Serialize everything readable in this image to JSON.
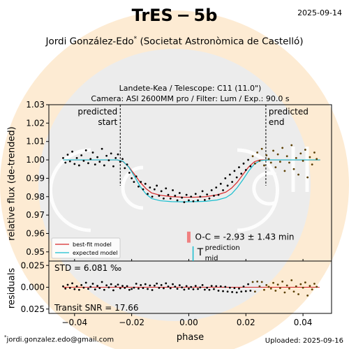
{
  "header": {
    "title": "TrES − 5b",
    "date": "2025-09-14",
    "author": "Jordi González-Edo",
    "author_mark": "*",
    "affiliation": "(Societat Astronòmica de Castelló)",
    "subtitle_line1": "Landete-Kea / Telescope: C11 (11.0\")",
    "subtitle_line2": "Camera: ASI 2600MM pro / Filter: Lum / Exp.: 90.0 s"
  },
  "footer": {
    "email_mark": "*",
    "email": "jordi.gonzalez.edo@gmail.com",
    "uploaded": "Uploaded: 2025-09-16"
  },
  "colors": {
    "background_ring": "#fdebd3",
    "background_disk": "#ececec",
    "points": "#000000",
    "bestfit": "#d62728",
    "expected": "#17becf",
    "oc_bar": "#f08080",
    "egress_points": "#5a3e00"
  },
  "chart_data": [
    {
      "type": "scatter",
      "panel": "light-curve",
      "xlabel": "phase",
      "ylabel": "relative flux (de-trended)",
      "xlim": [
        -0.049,
        0.05
      ],
      "ylim": [
        0.945,
        1.03
      ],
      "yticks": [
        "0.95",
        "0.96",
        "0.97",
        "0.98",
        "0.99",
        "1.00",
        "1.01",
        "1.02",
        "1.03"
      ],
      "ytick_values": [
        0.95,
        0.96,
        0.97,
        0.98,
        0.99,
        1.0,
        1.01,
        1.02,
        1.03
      ],
      "grid": false,
      "annotations": {
        "predicted_start": {
          "x": -0.024,
          "text_line1": "predicted",
          "text_line2": "start"
        },
        "predicted_end": {
          "x": 0.027,
          "text_line1": "predicted",
          "text_line2": "end"
        },
        "oc_text": "O-C = -2.93 ± 1.43 min",
        "tmid_T": "T",
        "tmid_sup": "prediction",
        "tmid_sub": "mid",
        "oc_bar": {
          "x": 0.0,
          "y_range": [
            0.955,
            0.961
          ]
        }
      },
      "model": {
        "depth": 0.0205,
        "t1": -0.0235,
        "t4": 0.0245,
        "ingress": 0.0085,
        "oc_shift": -0.00085
      },
      "series": [
        {
          "name": "best-fit model",
          "color": "#d62728",
          "x": [
            -0.044,
            -0.04,
            -0.036,
            -0.032,
            -0.028,
            -0.025,
            -0.023,
            -0.021,
            -0.019,
            -0.017,
            -0.015,
            -0.013,
            -0.01,
            -0.006,
            -0.002,
            0.002,
            0.006,
            0.01,
            0.013,
            0.015,
            0.017,
            0.019,
            0.021,
            0.023,
            0.025,
            0.028,
            0.032,
            0.036,
            0.04,
            0.044,
            0.046
          ],
          "y": [
            1.0,
            1.0,
            1.0,
            1.0,
            1.0,
            1.0,
            0.999,
            0.9962,
            0.9921,
            0.9878,
            0.9844,
            0.982,
            0.9808,
            0.98,
            0.9797,
            0.9797,
            0.98,
            0.981,
            0.9825,
            0.9847,
            0.9879,
            0.9921,
            0.9962,
            0.999,
            1.0,
            1.0,
            1.0,
            1.0,
            1.0,
            1.0,
            1.0
          ]
        },
        {
          "name": "expected model",
          "color": "#17becf",
          "x": [
            -0.044,
            -0.04,
            -0.036,
            -0.032,
            -0.028,
            -0.025,
            -0.023,
            -0.021,
            -0.019,
            -0.017,
            -0.015,
            -0.013,
            -0.01,
            -0.006,
            -0.002,
            0.002,
            0.006,
            0.01,
            0.013,
            0.015,
            0.017,
            0.019,
            0.021,
            0.023,
            0.025,
            0.028,
            0.032,
            0.036,
            0.04,
            0.044,
            0.046
          ],
          "y": [
            1.0,
            1.0,
            1.0,
            1.0,
            1.0,
            1.0,
            0.9992,
            0.996,
            0.991,
            0.9855,
            0.9815,
            0.979,
            0.9778,
            0.9773,
            0.9772,
            0.9773,
            0.9775,
            0.9782,
            0.9795,
            0.9815,
            0.985,
            0.9893,
            0.994,
            0.9978,
            0.9996,
            1.0,
            1.0,
            1.0,
            1.0,
            1.0,
            1.0
          ]
        }
      ],
      "points": {
        "x": [
          -0.044,
          -0.0432,
          -0.0424,
          -0.0416,
          -0.0408,
          -0.04,
          -0.0392,
          -0.0384,
          -0.0376,
          -0.0368,
          -0.036,
          -0.0352,
          -0.0344,
          -0.0336,
          -0.0328,
          -0.032,
          -0.0312,
          -0.0304,
          -0.0296,
          -0.0288,
          -0.028,
          -0.0272,
          -0.0264,
          -0.0256,
          -0.0248,
          -0.024,
          -0.0232,
          -0.0224,
          -0.0216,
          -0.0208,
          -0.02,
          -0.0192,
          -0.0184,
          -0.0176,
          -0.0168,
          -0.016,
          -0.0152,
          -0.0144,
          -0.0136,
          -0.0128,
          -0.012,
          -0.0112,
          -0.0104,
          -0.0096,
          -0.0088,
          -0.008,
          -0.0072,
          -0.0064,
          -0.0056,
          -0.0048,
          -0.004,
          -0.0032,
          -0.0024,
          -0.0016,
          -0.0008,
          0.0,
          0.0008,
          0.0016,
          0.0024,
          0.0032,
          0.004,
          0.0048,
          0.0056,
          0.0064,
          0.0072,
          0.008,
          0.0088,
          0.0096,
          0.0104,
          0.0112,
          0.012,
          0.0128,
          0.0136,
          0.0144,
          0.0152,
          0.016,
          0.0168,
          0.0176,
          0.0184,
          0.0192,
          0.02,
          0.0208,
          0.0216,
          0.0224,
          0.0232,
          0.024,
          0.0248,
          0.0256,
          0.0264,
          0.0272,
          0.028,
          0.0288,
          0.0296,
          0.0304,
          0.0312,
          0.032,
          0.0328,
          0.0336,
          0.0344,
          0.0352,
          0.036,
          0.0368,
          0.0376,
          0.0384,
          0.0392,
          0.04,
          0.0408,
          0.0416,
          0.0424,
          0.0432,
          0.044,
          0.0448
        ],
        "y": [
          1.001,
          0.9985,
          1.0028,
          0.9992,
          1.0045,
          0.9978,
          1.001,
          0.997,
          1.0025,
          0.9995,
          1.0052,
          0.9982,
          1.0005,
          1.004,
          0.9975,
          1.0015,
          0.999,
          1.006,
          0.997,
          1.0022,
          0.9998,
          1.0035,
          0.9965,
          1.001,
          1.003,
          0.999,
          1.0005,
          0.9955,
          0.9975,
          0.993,
          0.99,
          0.988,
          0.991,
          0.9855,
          0.988,
          0.984,
          0.987,
          0.9815,
          0.985,
          0.98,
          0.984,
          0.986,
          0.9805,
          0.983,
          0.979,
          0.9845,
          0.981,
          0.979,
          0.9835,
          0.9805,
          0.978,
          0.982,
          0.9795,
          0.977,
          0.981,
          0.978,
          0.98,
          0.9775,
          0.9815,
          0.978,
          0.98,
          0.983,
          0.9782,
          0.9812,
          0.979,
          0.9835,
          0.9805,
          0.985,
          0.981,
          0.987,
          0.9835,
          0.99,
          0.986,
          0.992,
          0.988,
          0.994,
          0.9905,
          0.996,
          0.9925,
          0.998,
          0.9945,
          1.0,
          0.9965,
          1.002,
          0.998,
          1.004,
          0.9995,
          1.006,
          0.997,
          1.0025,
          1.0005,
          0.9985,
          1.005,
          0.996,
          1.003,
          0.999,
          1.0065,
          0.994,
          1.002,
          0.9985,
          1.008,
          0.995,
          1.001,
          0.992,
          1.0035,
          0.9995,
          1.0055,
          0.9905,
          1.0015,
          0.9975,
          1.004,
          1.0005
        ]
      },
      "legend": {
        "position": "lower-left",
        "entries": [
          "best-fit model",
          "expected model"
        ]
      }
    },
    {
      "type": "scatter",
      "panel": "residuals",
      "xlabel": "phase",
      "ylabel": "residuals",
      "xlim": [
        -0.049,
        0.05
      ],
      "ylim": [
        -0.03,
        0.03
      ],
      "xticks": [
        "−0.04",
        "−0.02",
        "0.00",
        "0.02",
        "0.04"
      ],
      "xtick_values": [
        -0.04,
        -0.02,
        0.0,
        0.02,
        0.04
      ],
      "yticks": [
        "0.025",
        "0.000",
        "0.025"
      ],
      "ytick_values": [
        0.025,
        0.0,
        -0.025
      ],
      "annotations": {
        "std": "STD = 6.081 ‰",
        "snr": "Transit SNR = 17.66"
      },
      "zero_line_color": "#d62728",
      "points": {
        "x": [
          -0.044,
          -0.0432,
          -0.0424,
          -0.0416,
          -0.0408,
          -0.04,
          -0.0392,
          -0.0384,
          -0.0376,
          -0.0368,
          -0.036,
          -0.0352,
          -0.0344,
          -0.0336,
          -0.0328,
          -0.032,
          -0.0312,
          -0.0304,
          -0.0296,
          -0.0288,
          -0.028,
          -0.0272,
          -0.0264,
          -0.0256,
          -0.0248,
          -0.024,
          -0.0232,
          -0.0224,
          -0.0216,
          -0.0208,
          -0.02,
          -0.0192,
          -0.0184,
          -0.0176,
          -0.0168,
          -0.016,
          -0.0152,
          -0.0144,
          -0.0136,
          -0.0128,
          -0.012,
          -0.0112,
          -0.0104,
          -0.0096,
          -0.0088,
          -0.008,
          -0.0072,
          -0.0064,
          -0.0056,
          -0.0048,
          -0.004,
          -0.0032,
          -0.0024,
          -0.0016,
          -0.0008,
          0.0,
          0.0008,
          0.0016,
          0.0024,
          0.0032,
          0.004,
          0.0048,
          0.0056,
          0.0064,
          0.0072,
          0.008,
          0.0088,
          0.0096,
          0.0104,
          0.0112,
          0.012,
          0.0128,
          0.0136,
          0.0144,
          0.0152,
          0.016,
          0.0168,
          0.0176,
          0.0184,
          0.0192,
          0.02,
          0.0208,
          0.0216,
          0.0224,
          0.0232,
          0.024,
          0.0248,
          0.0256,
          0.0264,
          0.0272,
          0.028,
          0.0288,
          0.0296,
          0.0304,
          0.0312,
          0.032,
          0.0328,
          0.0336,
          0.0344,
          0.0352,
          0.036,
          0.0368,
          0.0376,
          0.0384,
          0.0392,
          0.04,
          0.0408,
          0.0416,
          0.0424,
          0.0432,
          0.044,
          0.0448
        ],
        "y": [
          0.001,
          -0.0015,
          0.0028,
          -0.0008,
          0.0045,
          -0.0022,
          0.001,
          -0.003,
          0.0025,
          -0.0005,
          0.0052,
          -0.0018,
          0.0005,
          0.004,
          -0.0025,
          0.0015,
          -0.001,
          0.006,
          -0.003,
          0.0022,
          -0.0002,
          0.0035,
          -0.0035,
          0.001,
          0.003,
          -0.0012,
          0.0015,
          -0.0008,
          0.0012,
          -0.003,
          -0.002,
          -0.0005,
          0.004,
          -0.0015,
          0.0025,
          -0.001,
          0.0035,
          -0.002,
          0.002,
          -0.0032,
          0.0018,
          0.0042,
          -0.0008,
          0.0025,
          -0.0012,
          0.0045,
          0.0008,
          -0.0012,
          0.0035,
          0.0007,
          -0.0018,
          0.0023,
          -0.0002,
          -0.0027,
          0.0013,
          -0.0017,
          0.0003,
          -0.0023,
          0.0015,
          -0.002,
          -0.0002,
          0.0025,
          -0.0028,
          -0.0005,
          -0.003,
          0.0015,
          -0.0022,
          0.0012,
          -0.004,
          0.001,
          -0.0045,
          0.0005,
          -0.005,
          -0.0005,
          -0.0055,
          -0.001,
          -0.006,
          -0.0015,
          -0.005,
          0.0008,
          -0.0045,
          0.0035,
          -0.004,
          0.006,
          -0.005,
          0.0065,
          0.001,
          0.006,
          -0.003,
          0.0025,
          0.0005,
          -0.0015,
          0.005,
          -0.004,
          0.003,
          -0.001,
          0.0065,
          -0.006,
          0.002,
          -0.0015,
          0.008,
          -0.005,
          0.001,
          -0.008,
          0.0035,
          -0.0005,
          0.0055,
          -0.0095,
          0.0015,
          -0.0025,
          0.004,
          0.0005
        ]
      }
    }
  ]
}
